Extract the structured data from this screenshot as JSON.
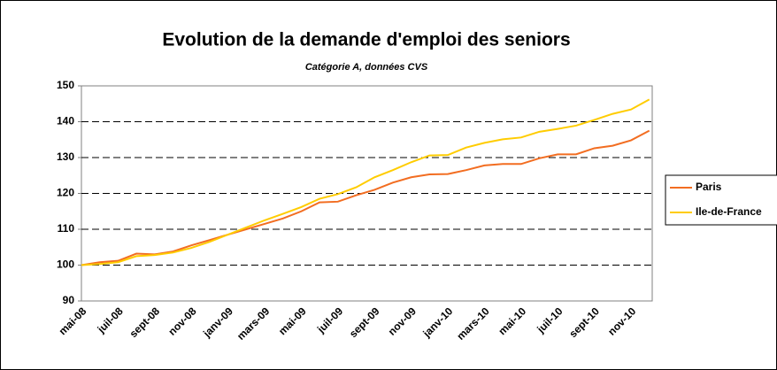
{
  "chart_data": {
    "type": "line",
    "title": "Evolution de la demande d'emploi des seniors",
    "subtitle": "Catégorie A, données CVS",
    "categories": [
      "mai-08",
      null,
      "juil-08",
      null,
      "sept-08",
      null,
      "nov-08",
      null,
      "janv-09",
      null,
      "mars-09",
      null,
      "mai-09",
      null,
      "juil-09",
      null,
      "sept-09",
      null,
      "nov-09",
      null,
      "janv-10",
      null,
      "mars-10",
      null,
      "mai-10",
      null,
      "juil-10",
      null,
      "sept-10",
      null,
      "nov-10",
      null
    ],
    "series": [
      {
        "name": "Paris",
        "color": "#f26d21",
        "values": [
          100,
          100.8,
          101.2,
          103.2,
          103,
          103.8,
          105.5,
          107,
          108.5,
          110,
          111.5,
          113,
          115,
          117.5,
          117.7,
          119.5,
          121,
          123,
          124.5,
          125.3,
          125.4,
          126.5,
          127.8,
          128.2,
          128.2,
          129.8,
          130.9,
          130.9,
          132.6,
          133.3,
          134.8,
          137.5
        ]
      },
      {
        "name": "Ile-de-France",
        "color": "#ffcc00",
        "values": [
          100,
          100.3,
          100.8,
          102.5,
          102.8,
          103.5,
          104.8,
          106.5,
          108.5,
          110.5,
          112.5,
          114.3,
          116.2,
          118.5,
          119.8,
          121.7,
          124.5,
          126.5,
          128.7,
          130.6,
          130.7,
          132.8,
          134.1,
          135.1,
          135.6,
          137.2,
          138,
          138.9,
          140.5,
          142.2,
          143.4,
          146.2
        ]
      }
    ],
    "ylim": [
      90,
      150
    ],
    "yticks": [
      90,
      100,
      110,
      120,
      130,
      140,
      150
    ],
    "grid": true,
    "legend": "right"
  }
}
